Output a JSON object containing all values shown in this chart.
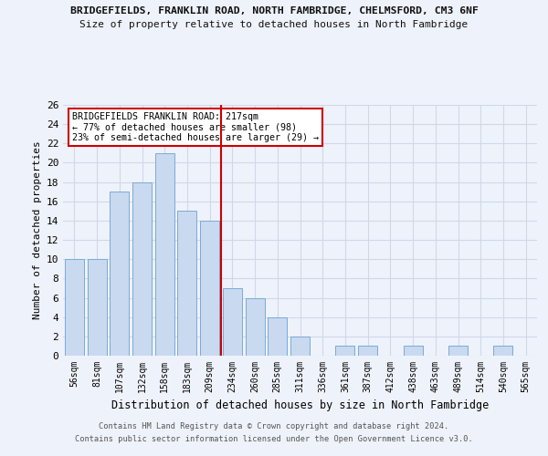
{
  "title1": "BRIDGEFIELDS, FRANKLIN ROAD, NORTH FAMBRIDGE, CHELMSFORD, CM3 6NF",
  "title2": "Size of property relative to detached houses in North Fambridge",
  "xlabel": "Distribution of detached houses by size in North Fambridge",
  "ylabel": "Number of detached properties",
  "categories": [
    "56sqm",
    "81sqm",
    "107sqm",
    "132sqm",
    "158sqm",
    "183sqm",
    "209sqm",
    "234sqm",
    "260sqm",
    "285sqm",
    "311sqm",
    "336sqm",
    "361sqm",
    "387sqm",
    "412sqm",
    "438sqm",
    "463sqm",
    "489sqm",
    "514sqm",
    "540sqm",
    "565sqm"
  ],
  "values": [
    10,
    10,
    17,
    18,
    21,
    15,
    14,
    7,
    6,
    4,
    2,
    0,
    1,
    1,
    0,
    1,
    0,
    1,
    0,
    1,
    0
  ],
  "bar_color": "#c9d9f0",
  "bar_edge_color": "#7aabd4",
  "grid_color": "#d0d8e8",
  "vline_color": "#cc0000",
  "annotation_title": "BRIDGEFIELDS FRANKLIN ROAD: 217sqm",
  "annotation_line1": "← 77% of detached houses are smaller (98)",
  "annotation_line2": "23% of semi-detached houses are larger (29) →",
  "annotation_box_color": "#ffffff",
  "annotation_box_edge": "#cc0000",
  "ylim": [
    0,
    26
  ],
  "yticks": [
    0,
    2,
    4,
    6,
    8,
    10,
    12,
    14,
    16,
    18,
    20,
    22,
    24,
    26
  ],
  "footnote1": "Contains HM Land Registry data © Crown copyright and database right 2024.",
  "footnote2": "Contains public sector information licensed under the Open Government Licence v3.0.",
  "bg_color": "#eef2fa"
}
